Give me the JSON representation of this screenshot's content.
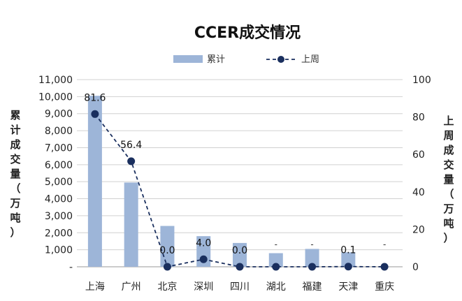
{
  "chart_data": {
    "type": "bar",
    "title": "CCER成交情况",
    "categories": [
      "上海",
      "广州",
      "北京",
      "深圳",
      "四川",
      "湖北",
      "福建",
      "天津",
      "重庆"
    ],
    "series": [
      {
        "name": "累计",
        "type": "bar",
        "axis": "left",
        "values": [
          10050,
          4950,
          2400,
          1800,
          1400,
          800,
          1050,
          850,
          0
        ]
      },
      {
        "name": "上周",
        "type": "line",
        "axis": "right",
        "values": [
          81.6,
          56.4,
          0.0,
          4.0,
          0.0,
          0,
          0,
          0.1,
          0
        ],
        "data_labels": [
          "81.6",
          "56.4",
          "0.0",
          "4.0",
          "0.0",
          "-",
          "-",
          "0.1",
          "-"
        ]
      }
    ],
    "ylabel": "累计成交量（万吨）",
    "y2label": "上周成交量（万吨）",
    "ylim": [
      0,
      11000
    ],
    "y_ticks": [
      "-",
      "1,000",
      "2,000",
      "3,000",
      "4,000",
      "5,000",
      "6,000",
      "7,000",
      "8,000",
      "9,000",
      "10,000",
      "11,000"
    ],
    "y2lim": [
      0,
      100
    ],
    "y2_ticks": [
      "0",
      "20",
      "40",
      "60",
      "80",
      "100"
    ],
    "grid": true,
    "legend_position": "top-center",
    "colors": {
      "bar": "#9db5d8",
      "line": "#1a2f5e"
    }
  }
}
